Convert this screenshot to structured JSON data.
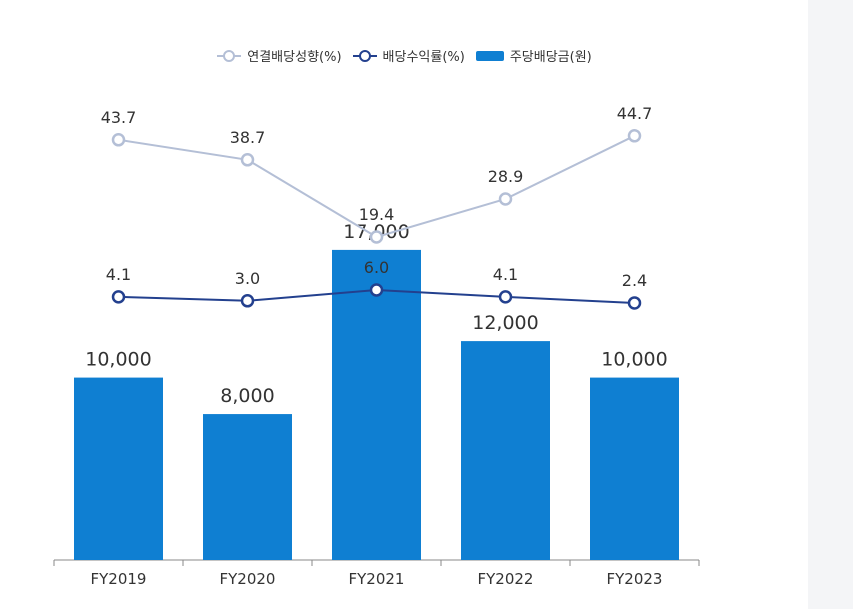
{
  "chart_data": {
    "type": "bar",
    "categories": [
      "FY2019",
      "FY2020",
      "FY2021",
      "FY2022",
      "FY2023"
    ],
    "series": [
      {
        "name": "연결배당성향(%)",
        "type": "line",
        "values": [
          43.7,
          38.7,
          19.4,
          28.9,
          44.7
        ],
        "color": "#b4bfd6"
      },
      {
        "name": "배당수익률(%)",
        "type": "line",
        "values": [
          4.1,
          3.0,
          6.0,
          4.1,
          2.4
        ],
        "color": "#23408e"
      },
      {
        "name": "주당배당금(원)",
        "type": "bar",
        "values": [
          10000,
          8000,
          17000,
          12000,
          10000
        ],
        "color": "#0f7fd2"
      }
    ],
    "value_labels": {
      "payout": [
        "43.7",
        "38.7",
        "19.4",
        "28.9",
        "44.7"
      ],
      "yield": [
        "4.1",
        "3.0",
        "6.0",
        "4.1",
        "2.4"
      ],
      "dps": [
        "10,000",
        "8,000",
        "17,000",
        "12,000",
        "10,000"
      ]
    },
    "legend_position": "top",
    "grid": false
  }
}
